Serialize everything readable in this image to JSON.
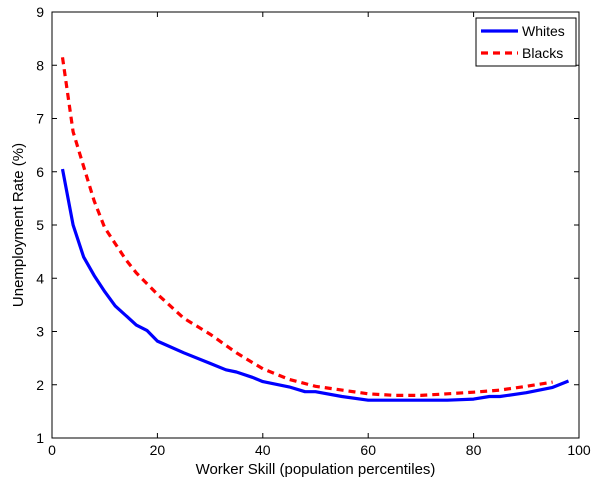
{
  "chart_data": {
    "type": "line",
    "xlabel": "Worker Skill (population percentiles)",
    "ylabel": "Unemployment Rate (%)",
    "xlim": [
      0,
      100
    ],
    "ylim": [
      1,
      9
    ],
    "xticks": [
      0,
      20,
      40,
      60,
      80,
      100
    ],
    "yticks": [
      1,
      2,
      3,
      4,
      5,
      6,
      7,
      8,
      9
    ],
    "grid": false,
    "legend_position": "top-right",
    "series": [
      {
        "name": "Whites",
        "color": "#0000ff",
        "style": "solid",
        "x": [
          2,
          4,
          6,
          8,
          10,
          12,
          14,
          16,
          18,
          20,
          25,
          30,
          33,
          35,
          38,
          40,
          45,
          48,
          50,
          55,
          60,
          65,
          70,
          75,
          80,
          83,
          85,
          90,
          95,
          98
        ],
        "y": [
          6.05,
          5.0,
          4.4,
          4.05,
          3.75,
          3.48,
          3.3,
          3.12,
          3.02,
          2.82,
          2.6,
          2.4,
          2.28,
          2.24,
          2.14,
          2.06,
          1.96,
          1.87,
          1.87,
          1.78,
          1.71,
          1.71,
          1.71,
          1.71,
          1.73,
          1.78,
          1.78,
          1.85,
          1.95,
          2.07
        ]
      },
      {
        "name": "Blacks",
        "color": "#ff0000",
        "style": "dashed",
        "x": [
          2,
          4,
          6,
          8,
          10,
          12,
          14,
          16,
          18,
          20,
          25,
          30,
          35,
          40,
          45,
          50,
          55,
          60,
          65,
          70,
          75,
          80,
          85,
          90,
          95
        ],
        "y": [
          8.15,
          6.75,
          6.1,
          5.45,
          4.95,
          4.65,
          4.35,
          4.1,
          3.9,
          3.7,
          3.25,
          2.95,
          2.6,
          2.3,
          2.1,
          1.97,
          1.9,
          1.83,
          1.8,
          1.8,
          1.83,
          1.86,
          1.9,
          1.97,
          2.05
        ]
      }
    ]
  }
}
